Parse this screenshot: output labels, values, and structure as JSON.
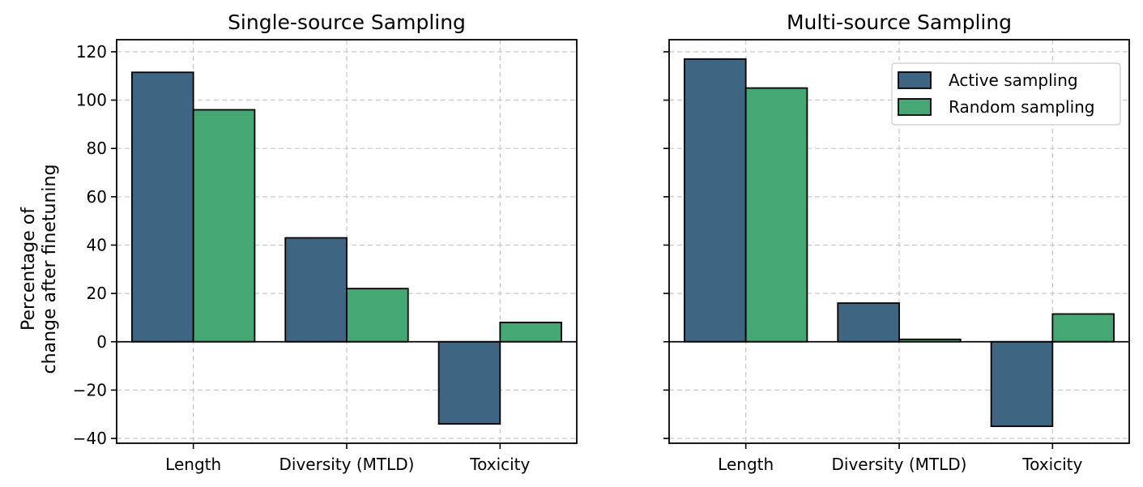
{
  "chart_data": [
    {
      "type": "bar",
      "title": "Single-source Sampling",
      "ylabel": [
        "Percentage of",
        "change after finetuning"
      ],
      "categories": [
        "Length",
        "Diversity (MTLD)",
        "Toxicity"
      ],
      "series": [
        {
          "name": "Active sampling",
          "color": "#3e6582",
          "values": [
            111.5,
            43,
            -34
          ]
        },
        {
          "name": "Random sampling",
          "color": "#45a874",
          "values": [
            96,
            22,
            8
          ]
        }
      ],
      "ylim": [
        -42,
        125
      ],
      "yticks": [
        -40,
        -20,
        0,
        20,
        40,
        60,
        80,
        100,
        120
      ],
      "ytick_labels": [
        "−40",
        "−20",
        "0",
        "20",
        "40",
        "60",
        "80",
        "100",
        "120"
      ],
      "grid": true,
      "legend": null
    },
    {
      "type": "bar",
      "title": "Multi-source Sampling",
      "categories": [
        "Length",
        "Diversity (MTLD)",
        "Toxicity"
      ],
      "series": [
        {
          "name": "Active sampling",
          "color": "#3e6582",
          "values": [
            117,
            16,
            -35
          ]
        },
        {
          "name": "Random sampling",
          "color": "#45a874",
          "values": [
            105,
            1,
            11.5
          ]
        }
      ],
      "ylim": [
        -42,
        125
      ],
      "yticks": [
        -40,
        -20,
        0,
        20,
        40,
        60,
        80,
        100,
        120
      ],
      "grid": true,
      "legend": "top-right",
      "shared_y": true
    }
  ]
}
